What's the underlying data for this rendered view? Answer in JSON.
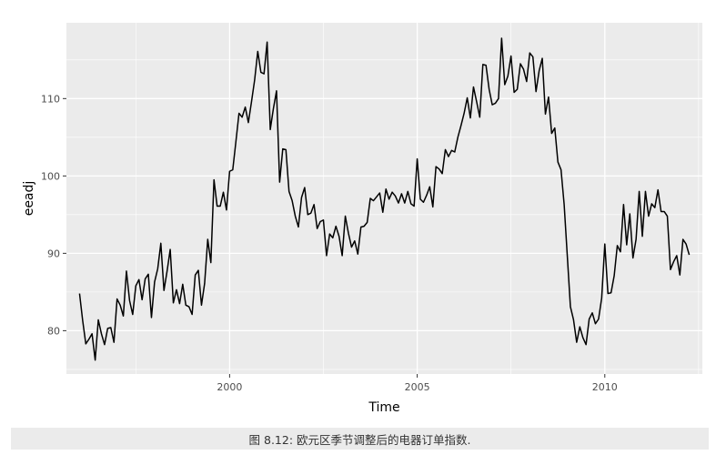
{
  "chart_data": {
    "type": "line",
    "xlabel": "Time",
    "ylabel": "eeadj",
    "xlim": [
      1995.65,
      2012.6
    ],
    "ylim": [
      74.4,
      119.8
    ],
    "x_ticks": [
      2000,
      2005,
      2010
    ],
    "x_tick_labels": [
      "2000",
      "2005",
      "2010"
    ],
    "x_minor_ticks": [
      1997.5,
      2002.5,
      2007.5,
      2012.5
    ],
    "y_ticks": [
      80,
      90,
      100,
      110
    ],
    "y_tick_labels": [
      "80",
      "90",
      "100",
      "110"
    ],
    "y_minor_ticks": [
      75,
      85,
      95,
      105,
      115
    ],
    "grid": true,
    "panel_color": "#ebebeb",
    "line_color": "#000000",
    "x_start": 1996.0,
    "x_step": 0.0833333,
    "series": [
      {
        "values": [
          84.8,
          81.3,
          78.3,
          78.9,
          79.6,
          76.2,
          81.4,
          79.6,
          78.2,
          80.3,
          80.4,
          78.5,
          84.1,
          83.3,
          81.9,
          87.7,
          83.9,
          82.1,
          85.8,
          86.6,
          84.0,
          86.7,
          87.3,
          81.7,
          86.3,
          88.0,
          91.3,
          85.2,
          87.7,
          90.5,
          83.6,
          85.3,
          83.5,
          86.0,
          83.3,
          83.1,
          82.1,
          87.2,
          87.8,
          83.3,
          86.1,
          91.8,
          88.8,
          99.5,
          96.1,
          96.1,
          97.9,
          95.6,
          100.6,
          100.8,
          104.4,
          108.1,
          107.6,
          108.9,
          106.9,
          109.6,
          112.4,
          116.1,
          113.4,
          113.2,
          117.3,
          106.0,
          108.7,
          111.0,
          99.2,
          103.5,
          103.4,
          98.0,
          96.8,
          94.8,
          93.4,
          97.2,
          98.5,
          95.0,
          95.2,
          96.3,
          93.2,
          94.1,
          94.3,
          89.7,
          92.5,
          92.0,
          93.5,
          92.2,
          89.7,
          94.8,
          92.6,
          90.8,
          91.6,
          89.9,
          93.4,
          93.5,
          94.0,
          97.1,
          96.8,
          97.3,
          97.8,
          95.3,
          98.3,
          97.0,
          97.9,
          97.4,
          96.5,
          97.7,
          96.5,
          98.0,
          96.4,
          96.1,
          102.2,
          97.0,
          96.6,
          97.5,
          98.6,
          96.0,
          101.2,
          100.9,
          100.3,
          103.4,
          102.5,
          103.3,
          103.1,
          105.0,
          106.5,
          108.1,
          110.1,
          107.5,
          111.5,
          109.6,
          107.6,
          114.4,
          114.3,
          111.2,
          109.2,
          109.4,
          110.0,
          117.8,
          111.8,
          112.9,
          115.5,
          110.8,
          111.2,
          114.5,
          113.8,
          112.2,
          115.9,
          115.4,
          110.9,
          113.6,
          115.2,
          108.0,
          110.2,
          105.5,
          106.2,
          101.8,
          100.8,
          96.3,
          89.7,
          83.1,
          81.4,
          78.5,
          80.5,
          79.1,
          78.2,
          81.5,
          82.3,
          80.9,
          81.5,
          84.2,
          91.2,
          84.8,
          84.9,
          87.1,
          91.0,
          90.2,
          96.3,
          91.1,
          95.1,
          89.4,
          91.8,
          98.0,
          92.2,
          98.0,
          94.8,
          96.4,
          95.9,
          98.2,
          95.4,
          95.4,
          94.8,
          87.9,
          88.9,
          89.7,
          87.2,
          91.8,
          91.2,
          89.8
        ]
      }
    ]
  },
  "caption": "图 8.12: 欧元区季节调整后的电器订单指数."
}
